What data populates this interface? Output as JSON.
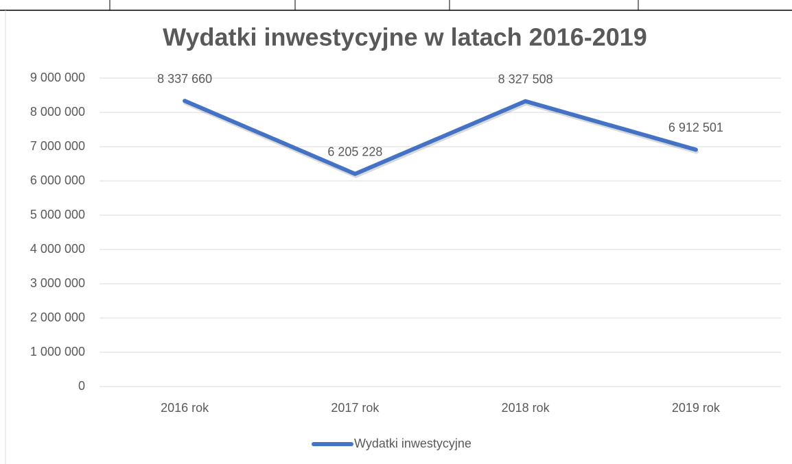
{
  "chart_data": {
    "type": "line",
    "title": "Wydatki inwestycyjne w latach 2016-2019",
    "categories": [
      "2016 rok",
      "2017 rok",
      "2018 rok",
      "2019 rok"
    ],
    "series": [
      {
        "name": "Wydatki inwestycyjne",
        "color": "#4472c4",
        "values": [
          8337660,
          6205228,
          8327508,
          6912501
        ],
        "value_labels": [
          "8 337 660",
          "6 205 228",
          "8 327 508",
          "6 912 501"
        ]
      }
    ],
    "ylim": [
      0,
      9000000
    ],
    "yticks": [
      {
        "value": 0,
        "label": "0"
      },
      {
        "value": 1000000,
        "label": "1 000 000"
      },
      {
        "value": 2000000,
        "label": "2 000 000"
      },
      {
        "value": 3000000,
        "label": "3 000 000"
      },
      {
        "value": 4000000,
        "label": "4 000 000"
      },
      {
        "value": 5000000,
        "label": "5 000 000"
      },
      {
        "value": 6000000,
        "label": "6 000 000"
      },
      {
        "value": 7000000,
        "label": "7 000 000"
      },
      {
        "value": 8000000,
        "label": "8 000 000"
      },
      {
        "value": 9000000,
        "label": "9 000 000"
      }
    ],
    "grid": true,
    "legend": "bottom"
  }
}
